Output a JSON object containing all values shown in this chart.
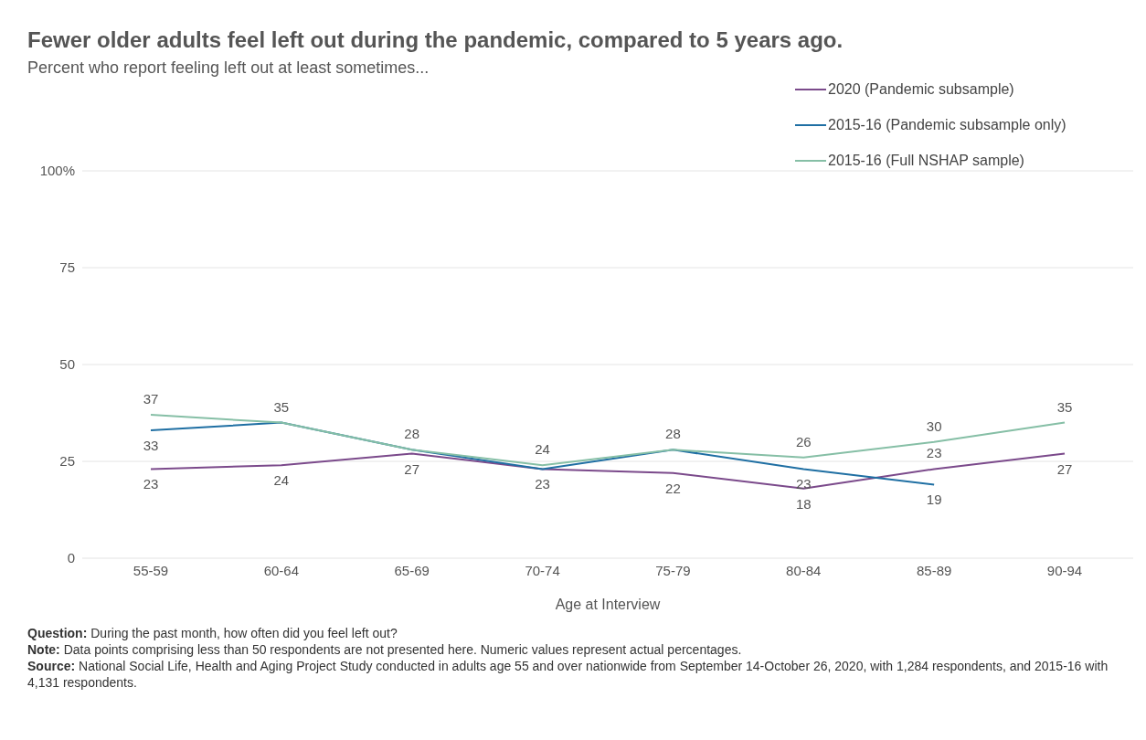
{
  "chart_data": {
    "type": "line",
    "title": "Fewer older adults feel left out during the pandemic, compared to 5 years ago.",
    "subtitle": "Percent who report feeling left out at least sometimes...",
    "xlabel": "Age at Interview",
    "categories": [
      "55-59",
      "60-64",
      "65-69",
      "70-74",
      "75-79",
      "80-84",
      "85-89",
      "90-94"
    ],
    "series": [
      {
        "name": "2020 (Pandemic subsample)",
        "color": "#7b4a8b",
        "values": [
          23,
          24,
          27,
          23,
          22,
          18,
          23,
          27
        ],
        "value_labels": [
          "23",
          "24",
          "27",
          "23",
          "22",
          "18",
          "23",
          "27"
        ]
      },
      {
        "name": "2015-16 (Pandemic subsample only)",
        "color": "#1f6fa3",
        "values": [
          33,
          35,
          28,
          23,
          28,
          23,
          19,
          null
        ],
        "value_labels": [
          "33",
          null,
          null,
          null,
          null,
          "23",
          "19",
          null
        ]
      },
      {
        "name": "2015-16 (Full NSHAP sample)",
        "color": "#86bfa6",
        "values": [
          37,
          35,
          28,
          24,
          28,
          26,
          30,
          35
        ],
        "value_labels": [
          "37",
          "35",
          "28",
          "24",
          "28",
          "26",
          "30",
          "35"
        ]
      }
    ],
    "ylim": [
      0,
      100
    ],
    "yticks": [
      0,
      25,
      50,
      75,
      {
        "value": 100,
        "label": "100%"
      }
    ],
    "grid": "y",
    "legend": "top right",
    "marker": "none",
    "line_style": "solid",
    "annotations": [
      "Question: During the past month, how often did you feel left out?",
      "Note: Data points comprising less than 50 respondents are not presented here. Numeric values represent actual percentages.",
      "Source: National Social Life, Health and Aging Project Study conducted in adults age 55 and over nationwide from September 14-October 26, 2020, with 1,284 respondents, and 2015-16 with 4,131 respondents."
    ]
  }
}
